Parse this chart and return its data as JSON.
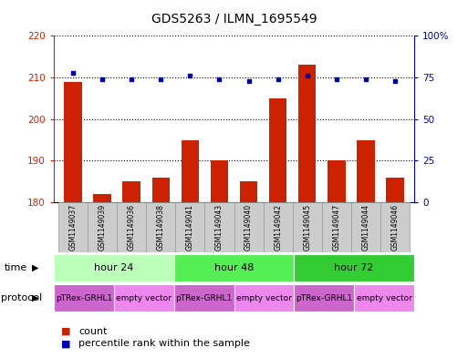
{
  "title": "GDS5263 / ILMN_1695549",
  "samples": [
    "GSM1149037",
    "GSM1149039",
    "GSM1149036",
    "GSM1149038",
    "GSM1149041",
    "GSM1149043",
    "GSM1149040",
    "GSM1149042",
    "GSM1149045",
    "GSM1149047",
    "GSM1149044",
    "GSM1149046"
  ],
  "counts": [
    209,
    182,
    185,
    186,
    195,
    190,
    185,
    205,
    213,
    190,
    195,
    186
  ],
  "percentile": [
    78,
    74,
    74,
    74,
    76,
    74,
    73,
    74,
    76,
    74,
    74,
    73
  ],
  "ylim_left": [
    180,
    220
  ],
  "ylim_right": [
    0,
    100
  ],
  "yticks_left": [
    180,
    190,
    200,
    210,
    220
  ],
  "yticks_right": [
    0,
    25,
    50,
    75,
    100
  ],
  "bar_color": "#cc2200",
  "dot_color": "#0000bb",
  "time_groups": [
    {
      "label": "hour 24",
      "start": 0,
      "end": 3,
      "color": "#bbffbb"
    },
    {
      "label": "hour 48",
      "start": 4,
      "end": 7,
      "color": "#55ee55"
    },
    {
      "label": "hour 72",
      "start": 8,
      "end": 11,
      "color": "#33cc33"
    }
  ],
  "protocol_groups": [
    {
      "label": "pTRex-GRHL1",
      "start": 0,
      "end": 1,
      "color": "#cc66cc"
    },
    {
      "label": "empty vector",
      "start": 2,
      "end": 3,
      "color": "#ee88ee"
    },
    {
      "label": "pTRex-GRHL1",
      "start": 4,
      "end": 5,
      "color": "#cc66cc"
    },
    {
      "label": "empty vector",
      "start": 6,
      "end": 7,
      "color": "#ee88ee"
    },
    {
      "label": "pTRex-GRHL1",
      "start": 8,
      "end": 9,
      "color": "#cc66cc"
    },
    {
      "label": "empty vector",
      "start": 10,
      "end": 11,
      "color": "#ee88ee"
    }
  ],
  "grid_color": "#000000",
  "background_color": "#ffffff",
  "left_axis_color": "#cc2200",
  "right_axis_color": "#0000bb",
  "sample_box_color": "#cccccc",
  "sample_box_edge": "#999999"
}
